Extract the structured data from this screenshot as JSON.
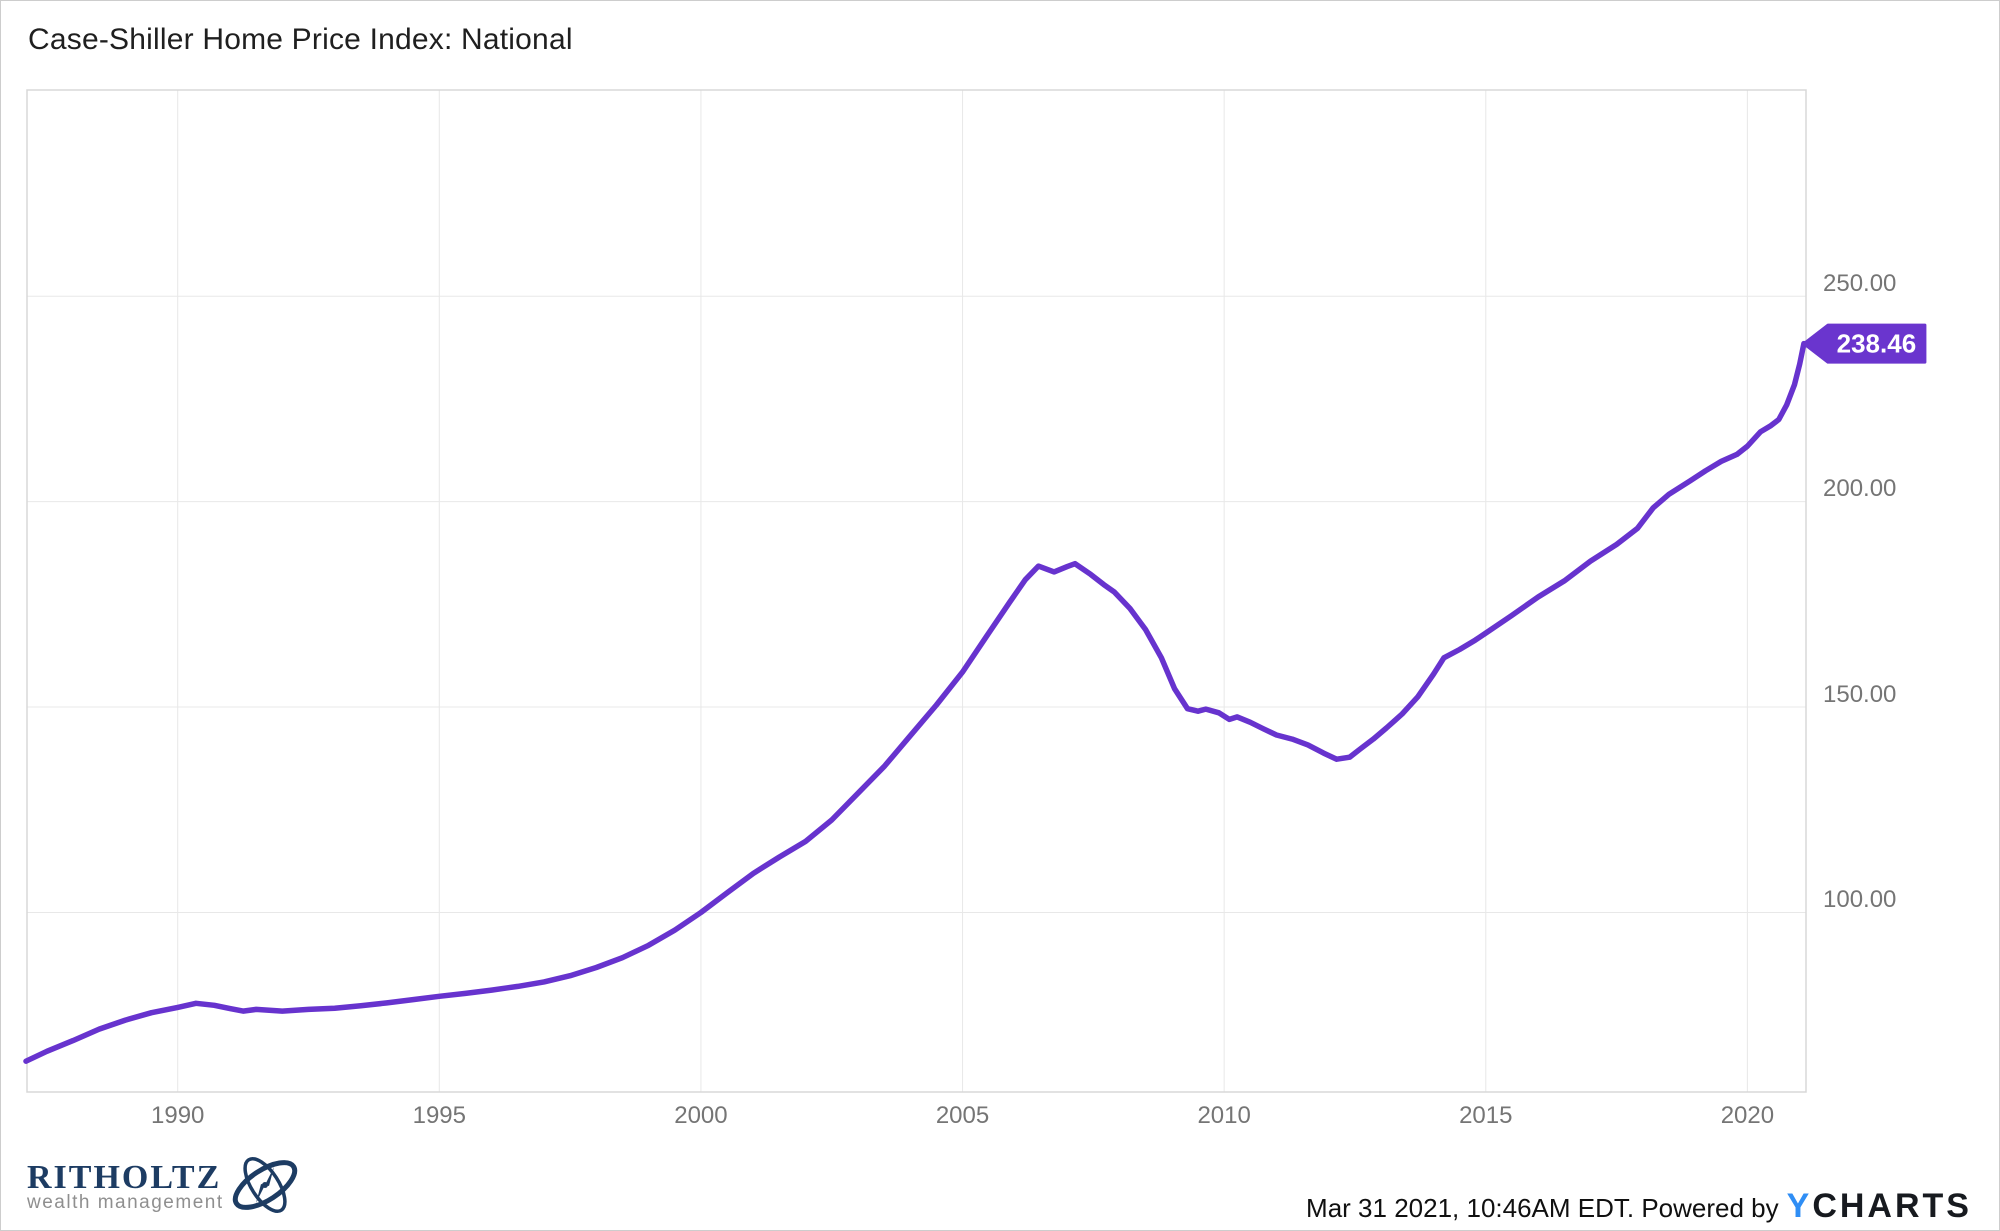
{
  "header": {
    "title": "Case-Shiller Home Price Index: National"
  },
  "footer": {
    "brand_name": "RITHOLTZ",
    "brand_tagline": "wealth management",
    "timestamp_text": "Mar 31 2021, 10:46AM EDT. Powered by",
    "ycharts_y": "Y",
    "ycharts_charts": "CHARTS"
  },
  "colors": {
    "line": "#6733CE",
    "badge": "#6A35CE",
    "badge_text": "#ffffff",
    "grid": "#e8e8e8",
    "plot_border": "#d8d8d8",
    "axis_text": "#757575",
    "title_text": "#1f1f1f",
    "brand_navy": "#1d3c63",
    "brand_gray": "#8f8f8f",
    "ycharts_blue": "#2f8ef5",
    "ycharts_dark": "#171a1f"
  },
  "chart_data": {
    "type": "line",
    "title": "Case-Shiller Home Price Index: National",
    "xlabel": "",
    "ylabel": "",
    "grid": true,
    "legend": "none",
    "xlim": [
      1987.12,
      2021.12
    ],
    "ylim": [
      56.3,
      300.2
    ],
    "x_ticks": [
      {
        "label": "1990",
        "value": 1990
      },
      {
        "label": "1995",
        "value": 1995
      },
      {
        "label": "2000",
        "value": 2000
      },
      {
        "label": "2005",
        "value": 2005
      },
      {
        "label": "2010",
        "value": 2010
      },
      {
        "label": "2015",
        "value": 2015
      },
      {
        "label": "2020",
        "value": 2020
      }
    ],
    "y_ticks": [
      {
        "label": "100.00",
        "value": 100
      },
      {
        "label": "150.00",
        "value": 150
      },
      {
        "label": "200.00",
        "value": 200
      },
      {
        "label": "250.00",
        "value": 250
      }
    ],
    "last_value_label": "238.46",
    "series": [
      {
        "name": "Case-Shiller Home Price Index: National",
        "points": [
          [
            1987.1,
            63.8
          ],
          [
            1987.5,
            66.2
          ],
          [
            1988.0,
            68.8
          ],
          [
            1988.5,
            71.6
          ],
          [
            1989.0,
            73.8
          ],
          [
            1989.5,
            75.6
          ],
          [
            1990.0,
            76.9
          ],
          [
            1990.35,
            77.9
          ],
          [
            1990.7,
            77.4
          ],
          [
            1991.0,
            76.6
          ],
          [
            1991.25,
            76.0
          ],
          [
            1991.5,
            76.4
          ],
          [
            1992.0,
            76.0
          ],
          [
            1992.5,
            76.4
          ],
          [
            1993.0,
            76.7
          ],
          [
            1993.5,
            77.3
          ],
          [
            1994.0,
            78.0
          ],
          [
            1994.5,
            78.8
          ],
          [
            1995.0,
            79.6
          ],
          [
            1995.5,
            80.3
          ],
          [
            1996.0,
            81.1
          ],
          [
            1996.5,
            82.0
          ],
          [
            1997.0,
            83.1
          ],
          [
            1997.5,
            84.6
          ],
          [
            1998.0,
            86.6
          ],
          [
            1998.5,
            89.0
          ],
          [
            1999.0,
            92.0
          ],
          [
            1999.5,
            95.7
          ],
          [
            2000.0,
            100.0
          ],
          [
            2000.5,
            104.8
          ],
          [
            2001.0,
            109.5
          ],
          [
            2001.5,
            113.5
          ],
          [
            2002.0,
            117.3
          ],
          [
            2002.5,
            122.5
          ],
          [
            2003.0,
            129.0
          ],
          [
            2003.5,
            135.5
          ],
          [
            2004.0,
            143.0
          ],
          [
            2004.5,
            150.5
          ],
          [
            2005.0,
            158.5
          ],
          [
            2005.5,
            168.0
          ],
          [
            2005.9,
            175.5
          ],
          [
            2006.2,
            181.0
          ],
          [
            2006.45,
            184.3
          ],
          [
            2006.75,
            182.9
          ],
          [
            2007.0,
            184.2
          ],
          [
            2007.15,
            184.9
          ],
          [
            2007.45,
            182.3
          ],
          [
            2007.7,
            179.8
          ],
          [
            2007.9,
            178.0
          ],
          [
            2008.2,
            174.0
          ],
          [
            2008.5,
            168.8
          ],
          [
            2008.8,
            162.0
          ],
          [
            2009.05,
            154.5
          ],
          [
            2009.3,
            149.6
          ],
          [
            2009.5,
            149.0
          ],
          [
            2009.65,
            149.5
          ],
          [
            2009.9,
            148.6
          ],
          [
            2010.1,
            147.0
          ],
          [
            2010.25,
            147.6
          ],
          [
            2010.5,
            146.3
          ],
          [
            2010.75,
            144.7
          ],
          [
            2011.0,
            143.2
          ],
          [
            2011.3,
            142.2
          ],
          [
            2011.6,
            140.8
          ],
          [
            2011.9,
            138.8
          ],
          [
            2012.15,
            137.3
          ],
          [
            2012.4,
            137.8
          ],
          [
            2012.6,
            139.8
          ],
          [
            2012.85,
            142.2
          ],
          [
            2013.1,
            144.9
          ],
          [
            2013.4,
            148.3
          ],
          [
            2013.7,
            152.5
          ],
          [
            2014.0,
            158.0
          ],
          [
            2014.2,
            162.0
          ],
          [
            2014.5,
            164.0
          ],
          [
            2014.8,
            166.3
          ],
          [
            2015.0,
            168.0
          ],
          [
            2015.5,
            172.3
          ],
          [
            2016.0,
            176.8
          ],
          [
            2016.5,
            180.7
          ],
          [
            2017.0,
            185.5
          ],
          [
            2017.5,
            189.6
          ],
          [
            2017.9,
            193.5
          ],
          [
            2018.2,
            198.5
          ],
          [
            2018.5,
            201.8
          ],
          [
            2018.9,
            205.0
          ],
          [
            2019.2,
            207.5
          ],
          [
            2019.5,
            209.8
          ],
          [
            2019.8,
            211.5
          ],
          [
            2020.0,
            213.5
          ],
          [
            2020.25,
            217.0
          ],
          [
            2020.45,
            218.5
          ],
          [
            2020.6,
            220.0
          ],
          [
            2020.75,
            223.5
          ],
          [
            2020.9,
            228.5
          ],
          [
            2021.0,
            233.5
          ],
          [
            2021.08,
            238.46
          ]
        ]
      }
    ]
  }
}
